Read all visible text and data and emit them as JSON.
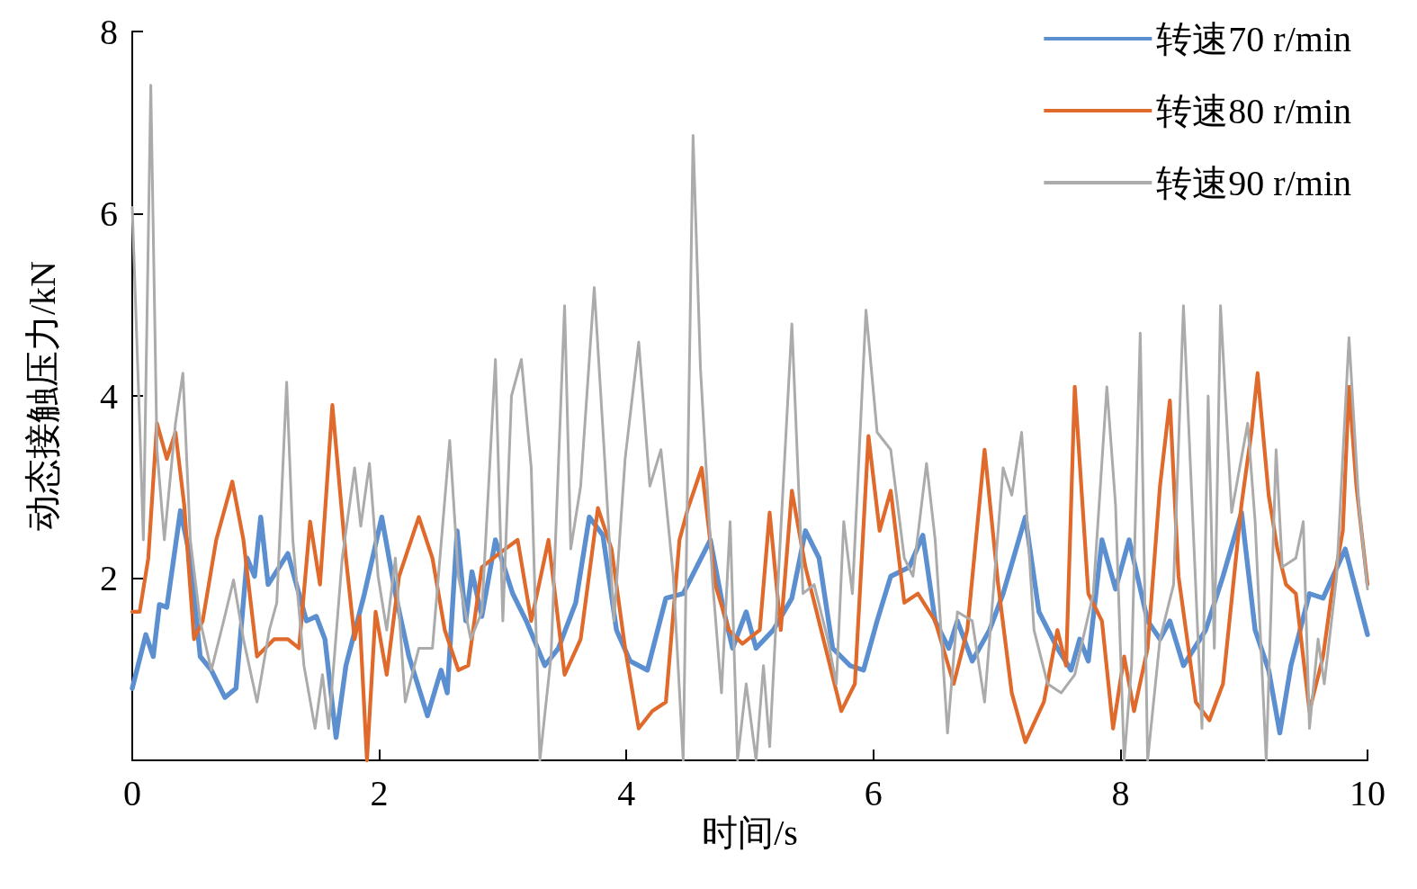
{
  "chart_data": {
    "type": "line",
    "xlabel": "时间/s",
    "ylabel": "动态接触压力/kN",
    "xlim": [
      0,
      10
    ],
    "xticks": [
      0,
      2,
      4,
      6,
      8,
      10
    ],
    "ylim": [
      0,
      8
    ],
    "yticks": [
      2,
      4,
      6,
      8
    ],
    "grid": false,
    "legend": "top right",
    "marker": "none",
    "line_style": "solid",
    "series": [
      {
        "name": "转速70 r/min",
        "color": "#5b8fd0",
        "x": [
          0,
          0.11,
          0.17,
          0.22,
          0.28,
          0.39,
          0.47,
          0.55,
          0.64,
          0.75,
          0.84,
          0.93,
          0.99,
          1.04,
          1.1,
          1.26,
          1.41,
          1.49,
          1.56,
          1.65,
          1.73,
          1.88,
          2.02,
          2.13,
          2.24,
          2.39,
          2.5,
          2.55,
          2.63,
          2.7,
          2.75,
          2.83,
          2.94,
          3.08,
          3.19,
          3.34,
          3.45,
          3.59,
          3.7,
          3.81,
          3.92,
          4.03,
          4.17,
          4.32,
          4.46,
          4.68,
          4.79,
          4.86,
          4.97,
          5.05,
          5.19,
          5.34,
          5.45,
          5.56,
          5.67,
          5.81,
          5.92,
          6.03,
          6.14,
          6.29,
          6.4,
          6.5,
          6.61,
          6.68,
          6.8,
          6.94,
          7.05,
          7.23,
          7.34,
          7.49,
          7.6,
          7.67,
          7.74,
          7.85,
          7.96,
          8.07,
          8.22,
          8.32,
          8.4,
          8.51,
          8.69,
          8.83,
          8.98,
          9.09,
          9.2,
          9.29,
          9.38,
          9.53,
          9.64,
          9.82,
          10
        ],
        "values": [
          0.79,
          1.38,
          1.14,
          1.71,
          1.68,
          2.74,
          2.22,
          1.14,
          0.99,
          0.69,
          0.79,
          2.22,
          2.02,
          2.67,
          1.93,
          2.27,
          1.53,
          1.58,
          1.33,
          0.25,
          1.04,
          1.83,
          2.67,
          1.83,
          1.14,
          0.49,
          0.99,
          0.74,
          2.52,
          1.53,
          2.07,
          1.58,
          2.42,
          1.83,
          1.53,
          1.04,
          1.23,
          1.73,
          2.67,
          2.47,
          1.43,
          1.09,
          0.99,
          1.78,
          1.83,
          2.42,
          1.63,
          1.23,
          1.63,
          1.23,
          1.43,
          1.78,
          2.52,
          2.22,
          1.23,
          1.04,
          0.99,
          1.53,
          2.02,
          2.12,
          2.47,
          1.53,
          1.23,
          1.53,
          1.09,
          1.43,
          1.83,
          2.67,
          1.63,
          1.23,
          0.99,
          1.33,
          1.09,
          2.42,
          1.88,
          2.42,
          1.53,
          1.33,
          1.53,
          1.04,
          1.43,
          2.02,
          2.72,
          1.43,
          0.99,
          0.3,
          1.04,
          1.83,
          1.78,
          2.32,
          1.38
        ]
      },
      {
        "name": "转速80 r/min",
        "color": "#e06a2c",
        "x": [
          0,
          0.06,
          0.13,
          0.2,
          0.28,
          0.35,
          0.42,
          0.5,
          0.57,
          0.68,
          0.81,
          0.9,
          1.01,
          1.15,
          1.26,
          1.35,
          1.44,
          1.52,
          1.62,
          1.73,
          1.8,
          1.84,
          1.9,
          1.97,
          2.06,
          2.16,
          2.32,
          2.43,
          2.53,
          2.64,
          2.72,
          2.83,
          2.97,
          3.12,
          3.23,
          3.37,
          3.5,
          3.63,
          3.77,
          3.88,
          3.99,
          4.1,
          4.21,
          4.32,
          4.43,
          4.5,
          4.61,
          4.72,
          4.83,
          4.94,
          5.08,
          5.16,
          5.25,
          5.34,
          5.45,
          5.63,
          5.74,
          5.85,
          5.96,
          6.05,
          6.14,
          6.25,
          6.36,
          6.5,
          6.65,
          6.76,
          6.9,
          7.01,
          7.12,
          7.23,
          7.38,
          7.49,
          7.56,
          7.63,
          7.74,
          7.85,
          7.94,
          8.03,
          8.11,
          8.22,
          8.32,
          8.4,
          8.47,
          8.61,
          8.72,
          8.83,
          8.98,
          9.06,
          9.11,
          9.2,
          9.27,
          9.34,
          9.42,
          9.53,
          9.64,
          9.71,
          9.8,
          9.85,
          9.91,
          10
        ],
        "values": [
          1.63,
          1.63,
          2.22,
          3.7,
          3.31,
          3.6,
          2.81,
          1.33,
          1.53,
          2.42,
          3.06,
          2.42,
          1.14,
          1.33,
          1.33,
          1.23,
          2.62,
          1.93,
          3.9,
          2.22,
          1.33,
          1.58,
          0,
          1.63,
          0.94,
          2.02,
          2.67,
          2.22,
          1.43,
          0.99,
          1.04,
          2.12,
          2.27,
          2.42,
          1.53,
          2.42,
          0.94,
          1.33,
          2.77,
          2.32,
          1.23,
          0.35,
          0.54,
          0.64,
          2.42,
          2.77,
          3.21,
          1.93,
          1.43,
          1.28,
          1.43,
          2.72,
          1.43,
          2.96,
          2.12,
          1.14,
          0.54,
          0.84,
          3.56,
          2.52,
          2.96,
          1.73,
          1.83,
          1.53,
          0.84,
          1.43,
          3.41,
          1.93,
          0.74,
          0.2,
          0.64,
          1.43,
          1.04,
          4.1,
          1.83,
          1.53,
          0.35,
          1.14,
          0.54,
          1.23,
          3.01,
          3.95,
          2.02,
          0.64,
          0.44,
          0.84,
          2.81,
          3.6,
          4.25,
          2.91,
          2.32,
          1.93,
          1.83,
          0.54,
          1.14,
          1.83,
          2.52,
          4.1,
          3.01,
          1.93
        ]
      },
      {
        "name": "转速90 r/min",
        "color": "#ababab",
        "x": [
          0,
          0.06,
          0.09,
          0.15,
          0.2,
          0.26,
          0.35,
          0.41,
          0.47,
          0.55,
          0.64,
          0.74,
          0.82,
          0.9,
          1.01,
          1.11,
          1.17,
          1.25,
          1.3,
          1.39,
          1.48,
          1.54,
          1.59,
          1.7,
          1.8,
          1.85,
          1.92,
          1.99,
          2.06,
          2.13,
          2.21,
          2.32,
          2.43,
          2.57,
          2.64,
          2.74,
          2.83,
          2.94,
          3,
          3.07,
          3.15,
          3.23,
          3.3,
          3.39,
          3.5,
          3.55,
          3.63,
          3.74,
          3.82,
          3.9,
          3.99,
          4.1,
          4.19,
          4.28,
          4.38,
          4.46,
          4.54,
          4.6,
          4.7,
          4.77,
          4.84,
          4.9,
          4.97,
          5.05,
          5.11,
          5.16,
          5.25,
          5.34,
          5.43,
          5.52,
          5.63,
          5.7,
          5.76,
          5.83,
          5.94,
          6.03,
          6.14,
          6.25,
          6.32,
          6.43,
          6.5,
          6.6,
          6.68,
          6.8,
          6.9,
          7.05,
          7.12,
          7.2,
          7.3,
          7.41,
          7.52,
          7.63,
          7.78,
          7.89,
          7.96,
          8.03,
          8.09,
          8.16,
          8.22,
          8.32,
          8.43,
          8.51,
          8.58,
          8.66,
          8.71,
          8.76,
          8.81,
          8.9,
          9.03,
          9.09,
          9.18,
          9.26,
          9.31,
          9.42,
          9.48,
          9.53,
          9.6,
          9.65,
          9.75,
          9.85,
          9.93,
          10
        ],
        "values": [
          6.07,
          3.7,
          2.42,
          7.41,
          3.41,
          2.42,
          3.7,
          4.25,
          2.42,
          1.53,
          0.99,
          1.53,
          1.98,
          1.33,
          0.64,
          1.43,
          1.73,
          4.15,
          2.42,
          1.04,
          0.35,
          0.94,
          0.35,
          2.22,
          3.21,
          2.57,
          3.26,
          2.02,
          1.43,
          2.22,
          0.64,
          1.23,
          1.23,
          3.51,
          2.02,
          1.33,
          1.63,
          4.4,
          1.53,
          4,
          4.4,
          3.21,
          0,
          1.14,
          4.99,
          2.32,
          3.01,
          5.19,
          3.41,
          1.53,
          3.31,
          4.59,
          3.01,
          3.41,
          2.02,
          0,
          6.86,
          4.3,
          1.93,
          0.74,
          2.62,
          0,
          0.84,
          0,
          1.04,
          0.15,
          2.52,
          4.79,
          1.83,
          1.93,
          1.33,
          0.84,
          2.62,
          1.83,
          4.94,
          3.6,
          3.41,
          2.22,
          2.02,
          3.26,
          2.42,
          0.3,
          1.63,
          1.53,
          0.64,
          3.21,
          2.91,
          3.6,
          1.43,
          0.84,
          0.74,
          0.94,
          1.83,
          4.1,
          2.81,
          0,
          1.04,
          4.69,
          0,
          1.33,
          1.93,
          4.99,
          2.81,
          0.35,
          4,
          1.23,
          4.99,
          2.72,
          3.7,
          2.62,
          0,
          3.41,
          2.12,
          2.22,
          2.62,
          0.35,
          1.33,
          0.84,
          2.02,
          4.64,
          2.81,
          1.88
        ]
      }
    ]
  }
}
